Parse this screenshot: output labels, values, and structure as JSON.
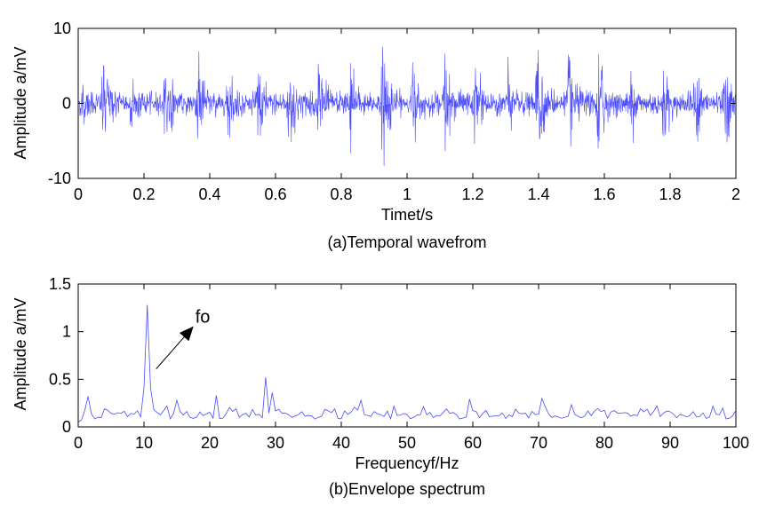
{
  "colors": {
    "series": "#4b4bff",
    "axis": "#000000",
    "background": "#ffffff"
  },
  "chart_data": [
    {
      "type": "line",
      "title": "",
      "caption": "(a)Temporal wavefrom",
      "xlabel": "Timet/s",
      "ylabel": "Amplitude a/mV",
      "xlim": [
        0,
        2
      ],
      "ylim": [
        -10,
        10
      ],
      "xticks": [
        0,
        0.2,
        0.4,
        0.6,
        0.8,
        1,
        1.2,
        1.4,
        1.6,
        1.8,
        2
      ],
      "xtick_labels": [
        "0",
        "0.2",
        "0.4",
        "0.6",
        "0.8",
        "1",
        "1.2",
        "1.4",
        "1.6",
        "1.8",
        "2"
      ],
      "yticks": [
        -10,
        0,
        10
      ],
      "ytick_labels": [
        "-10",
        "0",
        "10"
      ],
      "grid": false,
      "series": [
        {
          "sample_rate_hz": 1000,
          "impact_times_s": [
            0.01,
            0.075,
            0.16,
            0.265,
            0.36,
            0.455,
            0.545,
            0.64,
            0.73,
            0.825,
            0.925,
            1.015,
            1.115,
            1.205,
            1.305,
            1.395,
            1.49,
            1.58,
            1.68,
            1.78,
            1.875,
            1.965
          ],
          "impact_peaks_mV": [
            2.5,
            7.0,
            3.5,
            6.5,
            7.5,
            5.0,
            5.5,
            6.5,
            7.0,
            6.0,
            8.5,
            6.0,
            6.0,
            6.5,
            5.0,
            9.5,
            7.5,
            9.0,
            5.5,
            6.5,
            5.5,
            6.0
          ],
          "noise_rms_mV": 0.8
        }
      ]
    },
    {
      "type": "line",
      "title": "",
      "caption": "(b)Envelope spectrum",
      "xlabel": "Frequencyf/Hz",
      "ylabel": "Amplitude a/mV",
      "xlim": [
        0,
        100
      ],
      "ylim": [
        0,
        1.5
      ],
      "xticks": [
        0,
        10,
        20,
        30,
        40,
        50,
        60,
        70,
        80,
        90,
        100
      ],
      "xtick_labels": [
        "0",
        "10",
        "20",
        "30",
        "40",
        "50",
        "60",
        "70",
        "80",
        "90",
        "100"
      ],
      "yticks": [
        0,
        0.5,
        1,
        1.5
      ],
      "ytick_labels": [
        "0",
        "0.5",
        "1",
        "1.5"
      ],
      "grid": false,
      "annotations": [
        {
          "text": "fo",
          "points_to_x": 10.5,
          "points_to_y": 1.28
        }
      ],
      "series": [
        {
          "resolution_hz": 0.5,
          "peaks": [
            {
              "x": 1.5,
              "y": 0.32
            },
            {
              "x": 10.5,
              "y": 1.28
            },
            {
              "x": 15.0,
              "y": 0.28
            },
            {
              "x": 21.0,
              "y": 0.33
            },
            {
              "x": 28.5,
              "y": 0.52
            },
            {
              "x": 29.5,
              "y": 0.36
            },
            {
              "x": 43.0,
              "y": 0.28
            },
            {
              "x": 59.5,
              "y": 0.29
            },
            {
              "x": 70.5,
              "y": 0.3
            },
            {
              "x": 88.0,
              "y": 0.22
            }
          ],
          "baseline_mV": 0.11
        }
      ]
    }
  ]
}
